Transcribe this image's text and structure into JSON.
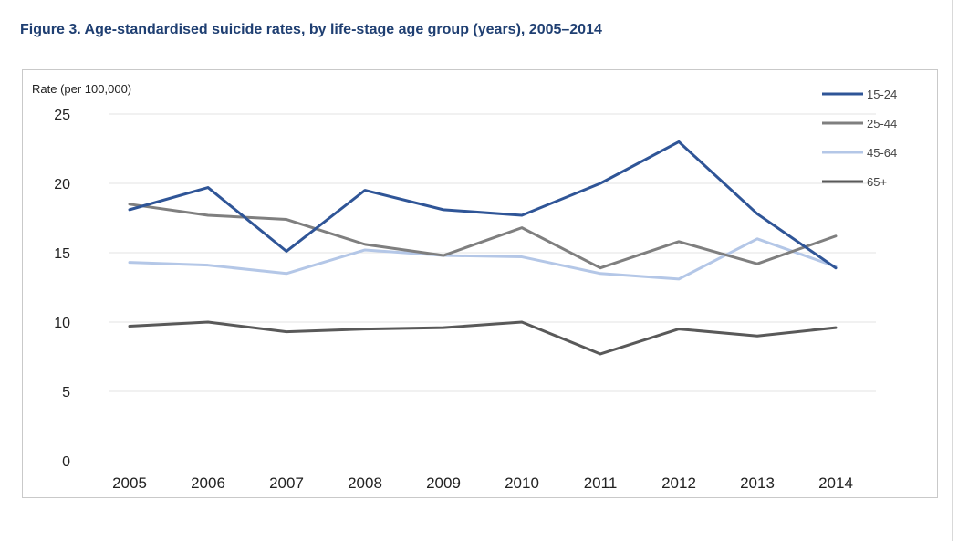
{
  "figure": {
    "title": "Figure 3. Age-standardised suicide rates, by life-stage age group (years), 2005–2014"
  },
  "chart_data": {
    "type": "line",
    "title": "Figure 3. Age-standardised suicide rates, by life-stage age group (years), 2005–2014",
    "ylabel": "Rate  (per 100,000)",
    "xlabel": "",
    "ylim": [
      0,
      25
    ],
    "yticks": [
      0,
      5,
      10,
      15,
      20,
      25
    ],
    "grid": true,
    "legend_position": "top-right",
    "categories": [
      "2005",
      "2006",
      "2007",
      "2008",
      "2009",
      "2010",
      "2011",
      "2012",
      "2013",
      "2014"
    ],
    "series": [
      {
        "name": "15-24",
        "color": "#2f5597",
        "values": [
          18.1,
          19.7,
          15.1,
          19.5,
          18.1,
          17.7,
          20.0,
          23.0,
          17.8,
          13.9
        ]
      },
      {
        "name": "25-44",
        "color": "#7f7f7f",
        "values": [
          18.5,
          17.7,
          17.4,
          15.6,
          14.8,
          16.8,
          13.9,
          15.8,
          14.2,
          16.2
        ]
      },
      {
        "name": "45-64",
        "color": "#b4c7e7",
        "values": [
          14.3,
          14.1,
          13.5,
          15.2,
          14.8,
          14.7,
          13.5,
          13.1,
          16.0,
          14.0
        ]
      },
      {
        "name": "65+",
        "color": "#595959",
        "values": [
          9.7,
          10.0,
          9.3,
          9.5,
          9.6,
          10.0,
          7.7,
          9.5,
          9.0,
          9.6
        ]
      }
    ]
  }
}
